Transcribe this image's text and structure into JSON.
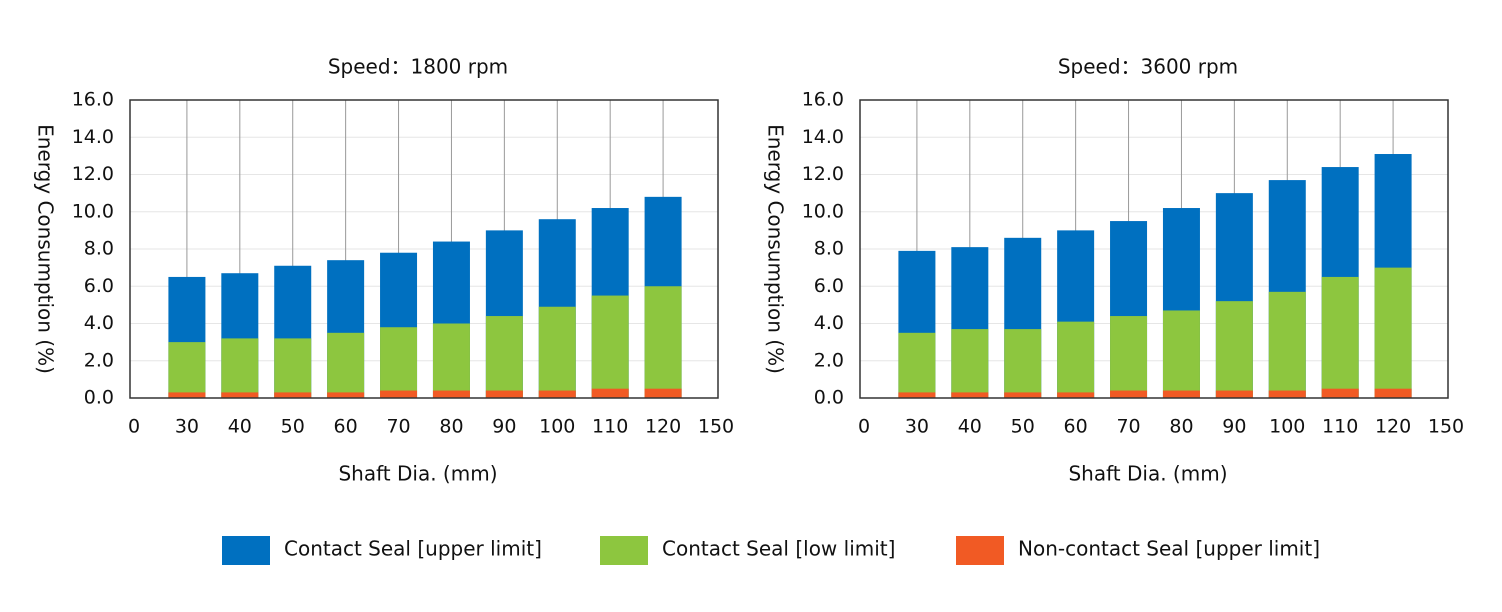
{
  "chart_data": [
    {
      "type": "bar",
      "title": "Speed：1800 rpm",
      "x_label": "Shaft Dia. (mm)",
      "y_label": "Energy Consumption (%)",
      "categories": [
        "0",
        "30",
        "40",
        "50",
        "60",
        "70",
        "80",
        "90",
        "100",
        "110",
        "120",
        "150"
      ],
      "series": [
        {
          "name": "Contact Seal [upper limit]",
          "color": "#0070c0",
          "values": [
            null,
            6.5,
            6.7,
            7.1,
            7.4,
            7.8,
            8.4,
            9.0,
            9.6,
            10.2,
            10.8,
            null
          ]
        },
        {
          "name": "Contact Seal [low limit]",
          "color": "#8dc63f",
          "values": [
            null,
            3.0,
            3.2,
            3.2,
            3.5,
            3.8,
            4.0,
            4.4,
            4.9,
            5.5,
            6.0,
            null
          ]
        },
        {
          "name": "Non-contact Seal [upper limit]",
          "color": "#f15a24",
          "values": [
            null,
            0.3,
            0.3,
            0.3,
            0.3,
            0.4,
            0.4,
            0.4,
            0.4,
            0.5,
            0.5,
            null
          ]
        }
      ],
      "ylim": [
        0,
        16
      ],
      "yticks": [
        {
          "value": 0,
          "label": "0.0"
        },
        {
          "value": 2,
          "label": "2.0"
        },
        {
          "value": 4,
          "label": "4.0"
        },
        {
          "value": 6,
          "label": "6.0"
        },
        {
          "value": 8,
          "label": "8.0"
        },
        {
          "value": 10,
          "label": "10.0"
        },
        {
          "value": 12,
          "label": "12.0"
        },
        {
          "value": 14,
          "label": "14.0"
        },
        {
          "value": 16,
          "label": "16.0"
        }
      ],
      "grid": true
    },
    {
      "type": "bar",
      "title": "Speed：3600 rpm",
      "x_label": "Shaft Dia. (mm)",
      "y_label": "Energy Consumption (%)",
      "categories": [
        "0",
        "30",
        "40",
        "50",
        "60",
        "70",
        "80",
        "90",
        "100",
        "110",
        "120",
        "150"
      ],
      "series": [
        {
          "color": "#0070c0",
          "values": [
            null,
            7.9,
            8.1,
            8.6,
            9.0,
            9.5,
            10.2,
            11.0,
            11.7,
            12.4,
            13.1,
            null
          ]
        },
        {
          "color": "#8dc63f",
          "values": [
            null,
            3.5,
            3.7,
            3.7,
            4.1,
            4.4,
            4.7,
            5.2,
            5.7,
            6.5,
            7.0,
            null
          ]
        },
        {
          "color": "#f15a24",
          "values": [
            null,
            0.3,
            0.3,
            0.3,
            0.3,
            0.4,
            0.4,
            0.4,
            0.4,
            0.5,
            0.5,
            null
          ]
        }
      ],
      "ylim": [
        0,
        16
      ],
      "yticks": [
        {
          "value": 0,
          "label": "0.0"
        },
        {
          "value": 2,
          "label": "2.0"
        },
        {
          "value": 4,
          "label": "4.0"
        },
        {
          "value": 6,
          "label": "6.0"
        },
        {
          "value": 8,
          "label": "8.0"
        },
        {
          "value": 10,
          "label": "10.0"
        },
        {
          "value": 12,
          "label": "12.0"
        },
        {
          "value": 14,
          "label": "14.0"
        },
        {
          "value": 16,
          "label": "16.0"
        }
      ],
      "grid": true
    }
  ]
}
